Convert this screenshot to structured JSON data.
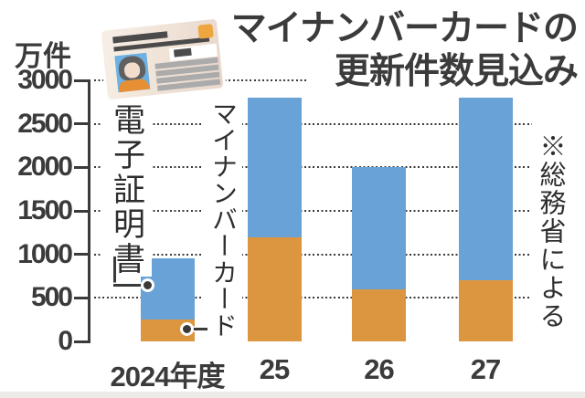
{
  "title": {
    "line1": "マイナンバーカードの",
    "line2": "更新件数見込み"
  },
  "unit_label": "万件",
  "source_note": "※総務省による",
  "annotations": {
    "blue_series_label": "電子証明書",
    "orange_series_label": "マイナンバーカード"
  },
  "y_axis": {
    "ticks": [
      "3000",
      "2500",
      "2000",
      "1500",
      "1000",
      "500",
      "0"
    ]
  },
  "x_axis": {
    "labels": [
      "2024年度",
      "25",
      "26",
      "27"
    ]
  },
  "colors": {
    "blue": "#68a2d6",
    "orange": "#dc963f",
    "text": "#3b3b3b",
    "grid": "#3a3a3a",
    "card_chip": "#efa63f",
    "bottom_strip": "#ecebe7"
  },
  "chart_data": {
    "type": "bar",
    "stacked": true,
    "title": "マイナンバーカードの更新件数見込み",
    "categories": [
      "2024年度",
      "25",
      "26",
      "27"
    ],
    "series": [
      {
        "name": "マイナンバーカード",
        "color": "#dc963f",
        "values": [
          250,
          1200,
          600,
          700
        ]
      },
      {
        "name": "電子証明書",
        "color": "#68a2d6",
        "values": [
          700,
          1600,
          1400,
          2100
        ]
      }
    ],
    "totals": [
      950,
      2800,
      2000,
      2800
    ],
    "ylabel": "万件",
    "ylim": [
      0,
      3000
    ],
    "ytick_interval": 500,
    "grid": "dotted-horizontal",
    "legend": "inline-annotations",
    "source": "※総務省による"
  }
}
